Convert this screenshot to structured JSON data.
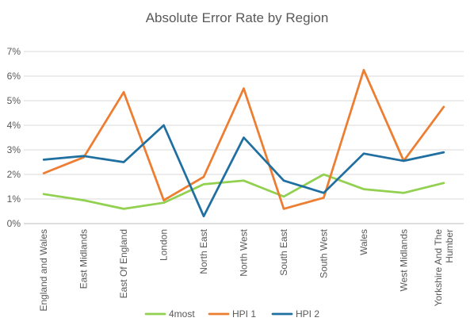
{
  "chart_data": {
    "type": "line",
    "title": "Absolute Error Rate by Region",
    "xlabel": "",
    "ylabel": "",
    "categories": [
      "England and Wales",
      "East Midlands",
      "East Of England",
      "London",
      "North East",
      "North West",
      "South East",
      "South West",
      "Wales",
      "West Midlands",
      "Yorkshire And The Humber"
    ],
    "series": [
      {
        "name": "4most",
        "color": "#92D050",
        "values": [
          1.2,
          0.95,
          0.6,
          0.85,
          1.6,
          1.75,
          1.1,
          2.0,
          1.4,
          1.25,
          1.65
        ]
      },
      {
        "name": "HPI 1",
        "color": "#ED7D31",
        "values": [
          2.05,
          2.7,
          5.35,
          0.95,
          1.9,
          5.5,
          0.6,
          1.05,
          6.25,
          2.55,
          4.75
        ]
      },
      {
        "name": "HPI 2",
        "color": "#1F6FA0",
        "values": [
          2.6,
          2.75,
          2.5,
          4.0,
          0.3,
          3.5,
          1.75,
          1.25,
          2.85,
          2.55,
          2.9
        ]
      }
    ],
    "ylim": [
      0,
      7
    ],
    "y_ticks": [
      "0%",
      "1%",
      "2%",
      "3%",
      "4%",
      "5%",
      "6%",
      "7%"
    ],
    "grid": true,
    "legend_position": "bottom"
  }
}
